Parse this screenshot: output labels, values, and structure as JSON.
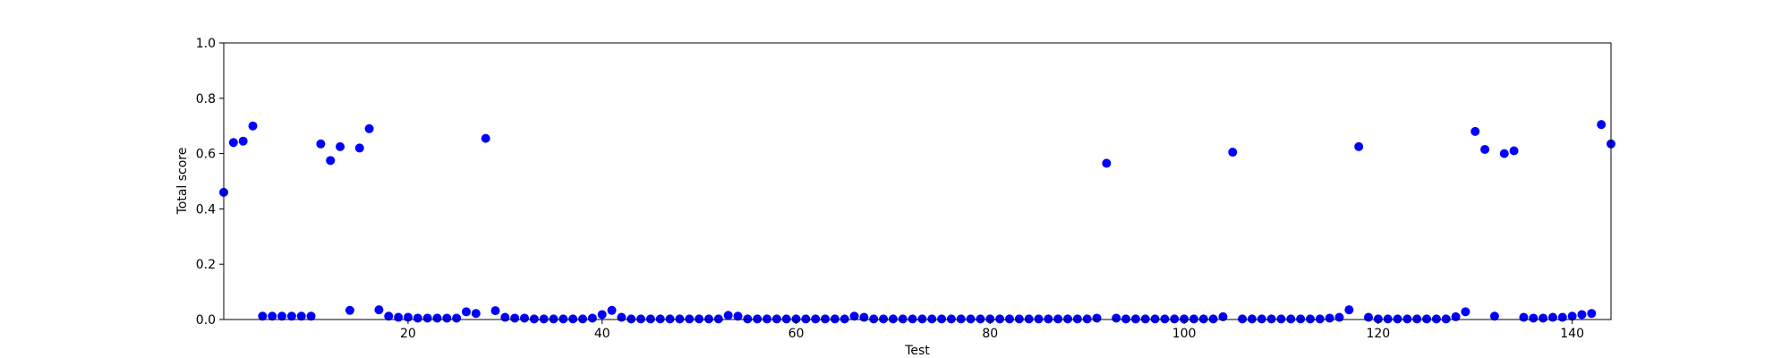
{
  "chart_data": {
    "type": "scatter",
    "xlabel": "Test",
    "ylabel": "Total score",
    "xlim": [
      1,
      144
    ],
    "ylim": [
      0.0,
      1.0
    ],
    "xticks": [
      20,
      40,
      60,
      80,
      100,
      120,
      140
    ],
    "yticks": [
      0.0,
      0.2,
      0.4,
      0.6,
      0.8,
      1.0
    ],
    "xtick_labels": [
      "20",
      "40",
      "60",
      "80",
      "100",
      "120",
      "140"
    ],
    "ytick_labels": [
      "0.0",
      "0.2",
      "0.4",
      "0.6",
      "0.8",
      "1.0"
    ],
    "grid": false,
    "marker_color": "#0000ff",
    "x": [
      1,
      2,
      3,
      4,
      5,
      6,
      7,
      8,
      9,
      10,
      11,
      12,
      13,
      14,
      15,
      16,
      17,
      18,
      19,
      20,
      21,
      22,
      23,
      24,
      25,
      26,
      27,
      28,
      29,
      30,
      31,
      32,
      33,
      34,
      35,
      36,
      37,
      38,
      39,
      40,
      41,
      42,
      43,
      44,
      45,
      46,
      47,
      48,
      49,
      50,
      51,
      52,
      53,
      54,
      55,
      56,
      57,
      58,
      59,
      60,
      61,
      62,
      63,
      64,
      65,
      66,
      67,
      68,
      69,
      70,
      71,
      72,
      73,
      74,
      75,
      76,
      77,
      78,
      79,
      80,
      81,
      82,
      83,
      84,
      85,
      86,
      87,
      88,
      89,
      90,
      91,
      92,
      93,
      94,
      95,
      96,
      97,
      98,
      99,
      100,
      101,
      102,
      103,
      104,
      105,
      106,
      107,
      108,
      109,
      110,
      111,
      112,
      113,
      114,
      115,
      116,
      117,
      118,
      119,
      120,
      121,
      122,
      123,
      124,
      125,
      126,
      127,
      128,
      129,
      130,
      131,
      132,
      133,
      134,
      135,
      136,
      137,
      138,
      139,
      140,
      141,
      142,
      143,
      144
    ],
    "y": [
      0.46,
      0.64,
      0.645,
      0.7,
      0.012,
      0.012,
      0.012,
      0.012,
      0.012,
      0.012,
      0.635,
      0.575,
      0.625,
      0.033,
      0.62,
      0.69,
      0.035,
      0.012,
      0.008,
      0.008,
      0.005,
      0.005,
      0.005,
      0.005,
      0.005,
      0.028,
      0.022,
      0.655,
      0.032,
      0.008,
      0.005,
      0.005,
      0.002,
      0.002,
      0.002,
      0.002,
      0.002,
      0.002,
      0.005,
      0.018,
      0.033,
      0.008,
      0.002,
      0.002,
      0.002,
      0.002,
      0.002,
      0.002,
      0.002,
      0.002,
      0.002,
      0.002,
      0.015,
      0.012,
      0.002,
      0.002,
      0.002,
      0.002,
      0.002,
      0.002,
      0.002,
      0.002,
      0.002,
      0.002,
      0.002,
      0.012,
      0.008,
      0.002,
      0.002,
      0.002,
      0.002,
      0.002,
      0.002,
      0.002,
      0.002,
      0.002,
      0.002,
      0.002,
      0.002,
      0.002,
      0.002,
      0.002,
      0.002,
      0.002,
      0.002,
      0.002,
      0.002,
      0.002,
      0.002,
      0.002,
      0.005,
      0.565,
      0.005,
      0.002,
      0.002,
      0.002,
      0.002,
      0.002,
      0.002,
      0.002,
      0.002,
      0.002,
      0.002,
      0.01,
      0.605,
      0.002,
      0.002,
      0.002,
      0.002,
      0.002,
      0.002,
      0.002,
      0.002,
      0.002,
      0.005,
      0.008,
      0.035,
      0.625,
      0.008,
      0.002,
      0.002,
      0.002,
      0.002,
      0.002,
      0.002,
      0.002,
      0.002,
      0.01,
      0.028,
      0.68,
      0.615,
      0.012,
      0.6,
      0.61,
      0.008,
      0.005,
      0.005,
      0.008,
      0.008,
      0.012,
      0.018,
      0.022,
      0.705,
      0.635
    ]
  }
}
